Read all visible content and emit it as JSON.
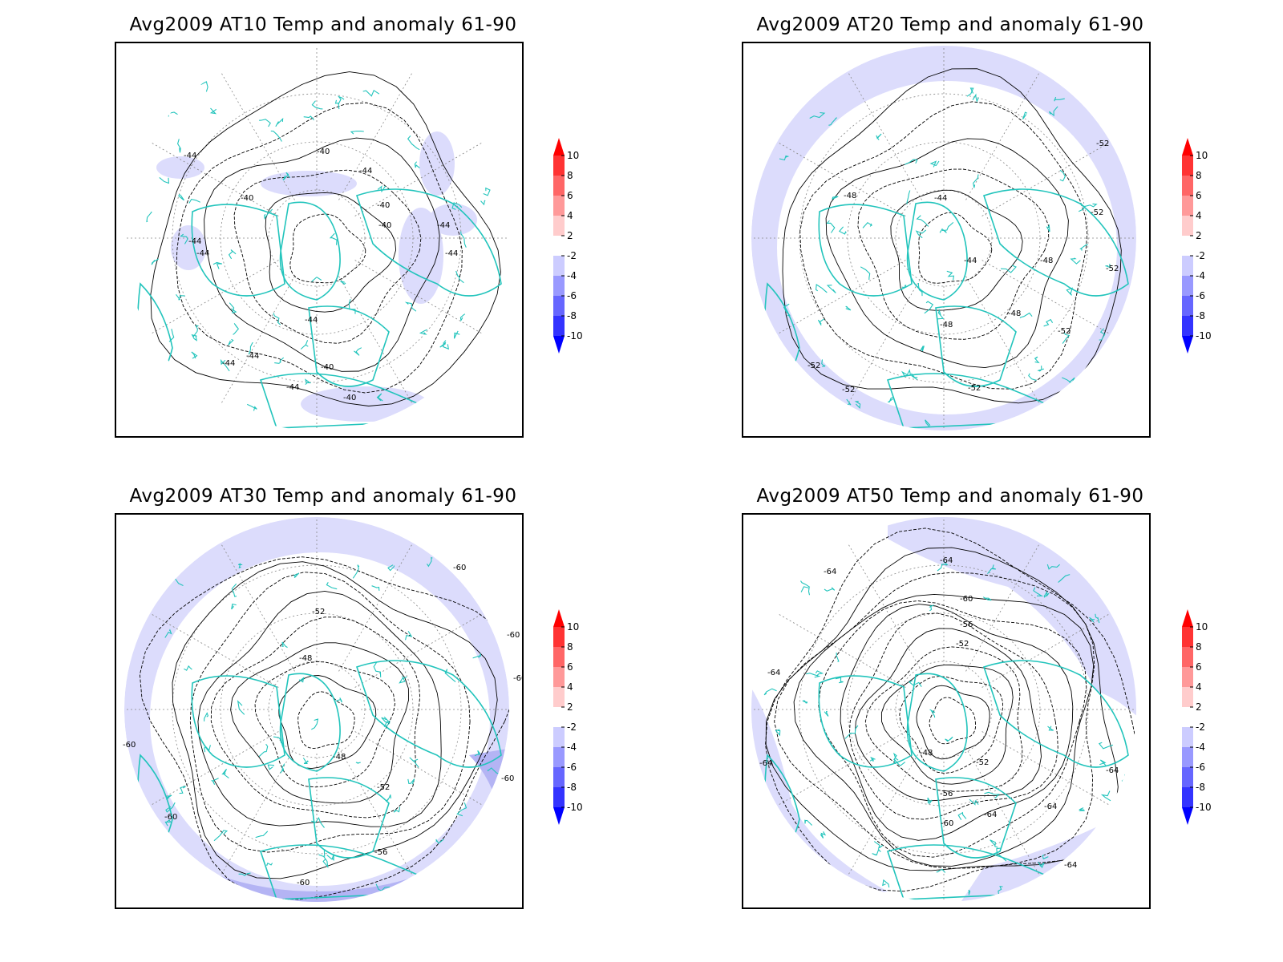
{
  "panels": [
    {
      "id": "at10",
      "title": "Avg2009 AT10 Temp and anomaly 61-90",
      "contour_labels": [
        "-44",
        "-40",
        "-40",
        "-44",
        "-40",
        "-40",
        "-44",
        "-44",
        "-44",
        "-40",
        "-44",
        "-40",
        "-44",
        "-44",
        "-44",
        "-44"
      ],
      "anomaly_fill": "light"
    },
    {
      "id": "at20",
      "title": "Avg2009 AT20 Temp and anomaly 61-90",
      "contour_labels": [
        "-48",
        "-44",
        "-44",
        "-48",
        "-48",
        "-48",
        "-52",
        "-52",
        "-52",
        "-52",
        "-52",
        "-52",
        "-52"
      ],
      "anomaly_fill": "ring"
    },
    {
      "id": "at30",
      "title": "Avg2009 AT30 Temp and anomaly 61-90",
      "contour_labels": [
        "-60",
        "-52",
        "-48",
        "-60",
        "-60",
        "-48",
        "-52",
        "-60",
        "-60",
        "-56",
        "-60",
        "-60"
      ],
      "anomaly_fill": "ring-strong"
    },
    {
      "id": "at50",
      "title": "Avg2009 AT50 Temp and anomaly 61-90",
      "contour_labels": [
        "-64",
        "-64",
        "-60",
        "-56",
        "-52",
        "-64",
        "-48",
        "-52",
        "-64",
        "-56",
        "-64",
        "-64",
        "-60",
        "-64",
        "-64"
      ],
      "anomaly_fill": "patches"
    }
  ],
  "colorbar": {
    "ticks": [
      "10",
      "8",
      "6",
      "4",
      "2",
      "-2",
      "-4",
      "-6",
      "-8",
      "-10"
    ],
    "colors": [
      "#ff0000",
      "#ff3333",
      "#ff6666",
      "#ff9999",
      "#ffcccc",
      "#ffffff",
      "#ccccff",
      "#9999ff",
      "#6666ff",
      "#3333ff",
      "#0000ff"
    ]
  },
  "colors": {
    "coastline": "#22c4bc",
    "contour": "#000000",
    "grid": "#888888",
    "anomaly_light": "#dcdcfc",
    "anomaly_mid": "#b4b4f4"
  }
}
